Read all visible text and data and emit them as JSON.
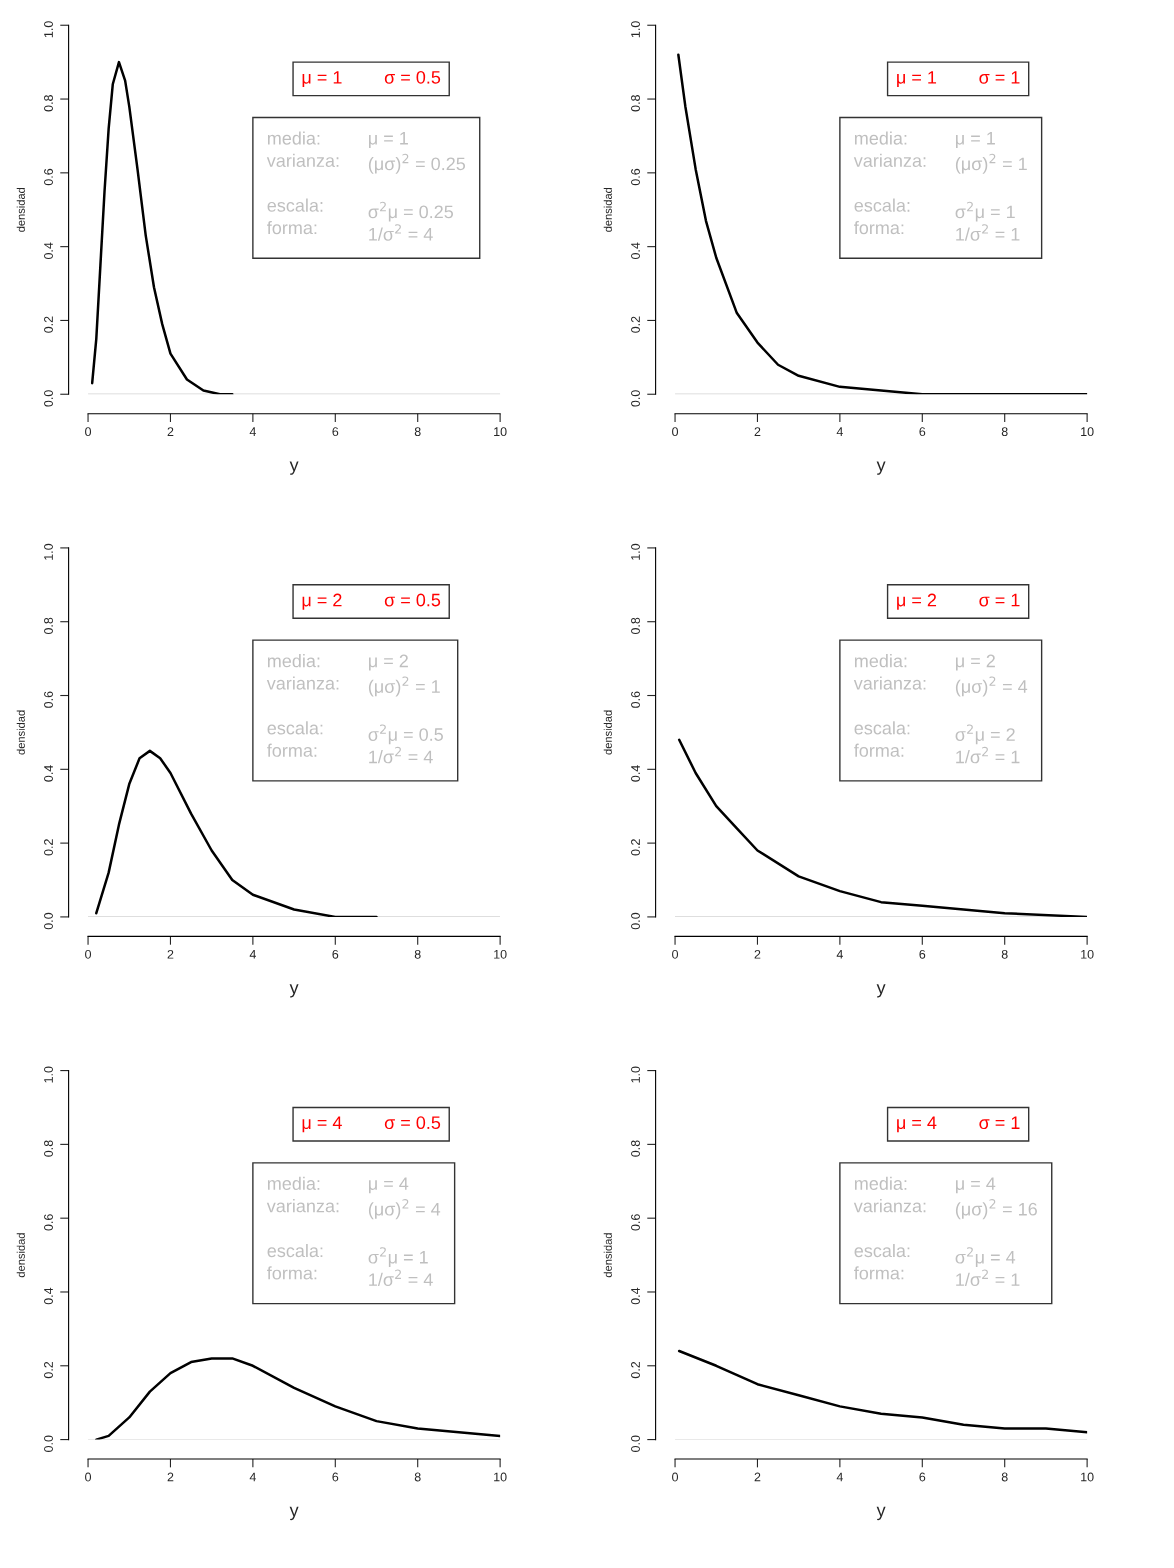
{
  "chart_data": [
    {
      "type": "line",
      "xlabel": "y",
      "ylabel": "densidad",
      "xlim": [
        0,
        10
      ],
      "ylim": [
        0,
        1
      ],
      "xticks": [
        0,
        2,
        4,
        6,
        8,
        10
      ],
      "yticks": [
        {
          "value": 0,
          "label": "0.0"
        },
        {
          "value": 0.2,
          "label": "0.2"
        },
        {
          "value": 0.4,
          "label": "0.4"
        },
        {
          "value": 0.6,
          "label": "0.6"
        },
        {
          "value": 0.8,
          "label": "0.8"
        },
        {
          "value": 1.0,
          "label": "1.0"
        }
      ],
      "ref_lines": [
        {
          "axis": "y",
          "value": 0,
          "color": "#d3d3d3"
        }
      ],
      "series": [
        {
          "color": "#000000",
          "x": [
            0.1,
            0.2,
            0.3,
            0.4,
            0.5,
            0.6,
            0.75,
            0.9,
            1.0,
            1.2,
            1.4,
            1.6,
            1.8,
            2.0,
            2.4,
            2.8,
            3.2,
            3.5
          ],
          "values": [
            0.03,
            0.15,
            0.35,
            0.55,
            0.72,
            0.84,
            0.9,
            0.85,
            0.78,
            0.61,
            0.43,
            0.29,
            0.19,
            0.11,
            0.04,
            0.01,
            0.0,
            0.0
          ]
        }
      ],
      "annotations": [
        "μ = 1",
        "σ = 0.5",
        "media:",
        "μ = 1",
        "varianza:",
        "(μσ)$^{2}$ = 0.25",
        "escala:",
        "σ$^{2}$μ = 0.25",
        "forma:",
        "1/σ$^{2}$ = 4"
      ]
    },
    {
      "type": "line",
      "xlabel": "y",
      "ylabel": "densidad",
      "xlim": [
        0,
        10
      ],
      "ylim": [
        0,
        1
      ],
      "xticks": [
        0,
        2,
        4,
        6,
        8,
        10
      ],
      "yticks": [
        {
          "value": 0,
          "label": "0.0"
        },
        {
          "value": 0.2,
          "label": "0.2"
        },
        {
          "value": 0.4,
          "label": "0.4"
        },
        {
          "value": 0.6,
          "label": "0.6"
        },
        {
          "value": 0.8,
          "label": "0.8"
        },
        {
          "value": 1.0,
          "label": "1.0"
        }
      ],
      "ref_lines": [
        {
          "axis": "y",
          "value": 0,
          "color": "#d3d3d3"
        }
      ],
      "series": [
        {
          "color": "#000000",
          "x": [
            0.08,
            0.25,
            0.5,
            0.75,
            1,
            1.5,
            2,
            2.5,
            3,
            4,
            5,
            6,
            8,
            10
          ],
          "values": [
            0.92,
            0.78,
            0.61,
            0.47,
            0.37,
            0.22,
            0.14,
            0.08,
            0.05,
            0.02,
            0.01,
            0.0,
            0.0,
            0.0
          ]
        }
      ],
      "annotations": [
        "μ = 1",
        "σ = 1",
        "media:",
        "μ = 1",
        "varianza:",
        "(μσ)$^{2}$ = 1",
        "escala:",
        "σ$^{2}$μ = 1",
        "forma:",
        "1/σ$^{2}$ = 1"
      ]
    },
    {
      "type": "line",
      "xlabel": "y",
      "ylabel": "densidad",
      "xlim": [
        0,
        10
      ],
      "ylim": [
        0,
        1
      ],
      "xticks": [
        0,
        2,
        4,
        6,
        8,
        10
      ],
      "yticks": [
        {
          "value": 0,
          "label": "0.0"
        },
        {
          "value": 0.2,
          "label": "0.2"
        },
        {
          "value": 0.4,
          "label": "0.4"
        },
        {
          "value": 0.6,
          "label": "0.6"
        },
        {
          "value": 0.8,
          "label": "0.8"
        },
        {
          "value": 1.0,
          "label": "1.0"
        }
      ],
      "ref_lines": [
        {
          "axis": "y",
          "value": 0,
          "color": "#d3d3d3"
        }
      ],
      "series": [
        {
          "color": "#000000",
          "x": [
            0.2,
            0.5,
            0.75,
            1,
            1.25,
            1.5,
            1.75,
            2,
            2.5,
            3,
            3.5,
            4,
            5,
            6,
            7
          ],
          "values": [
            0.01,
            0.12,
            0.25,
            0.36,
            0.43,
            0.45,
            0.43,
            0.39,
            0.28,
            0.18,
            0.1,
            0.06,
            0.02,
            0.0,
            0.0
          ]
        }
      ],
      "annotations": [
        "μ = 2",
        "σ = 0.5",
        "media:",
        "μ = 2",
        "varianza:",
        "(μσ)$^{2}$ = 1",
        "escala:",
        "σ$^{2}$μ = 0.5",
        "forma:",
        "1/σ$^{2}$ = 4"
      ]
    },
    {
      "type": "line",
      "xlabel": "y",
      "ylabel": "densidad",
      "xlim": [
        0,
        10
      ],
      "ylim": [
        0,
        1
      ],
      "xticks": [
        0,
        2,
        4,
        6,
        8,
        10
      ],
      "yticks": [
        {
          "value": 0,
          "label": "0.0"
        },
        {
          "value": 0.2,
          "label": "0.2"
        },
        {
          "value": 0.4,
          "label": "0.4"
        },
        {
          "value": 0.6,
          "label": "0.6"
        },
        {
          "value": 0.8,
          "label": "0.8"
        },
        {
          "value": 1.0,
          "label": "1.0"
        }
      ],
      "ref_lines": [
        {
          "axis": "y",
          "value": 0,
          "color": "#d3d3d3"
        }
      ],
      "series": [
        {
          "color": "#000000",
          "x": [
            0.1,
            0.5,
            1,
            1.5,
            2,
            3,
            4,
            5,
            6,
            7,
            8,
            10
          ],
          "values": [
            0.48,
            0.39,
            0.3,
            0.24,
            0.18,
            0.11,
            0.07,
            0.04,
            0.03,
            0.02,
            0.01,
            0.0
          ]
        }
      ],
      "annotations": [
        "μ = 2",
        "σ = 1",
        "media:",
        "μ = 2",
        "varianza:",
        "(μσ)$^{2}$ = 4",
        "escala:",
        "σ$^{2}$μ = 2",
        "forma:",
        "1/σ$^{2}$ = 1"
      ]
    },
    {
      "type": "line",
      "xlabel": "y",
      "ylabel": "densidad",
      "xlim": [
        0,
        10
      ],
      "ylim": [
        0,
        1
      ],
      "xticks": [
        0,
        2,
        4,
        6,
        8,
        10
      ],
      "yticks": [
        {
          "value": 0,
          "label": "0.0"
        },
        {
          "value": 0.2,
          "label": "0.2"
        },
        {
          "value": 0.4,
          "label": "0.4"
        },
        {
          "value": 0.6,
          "label": "0.6"
        },
        {
          "value": 0.8,
          "label": "0.8"
        },
        {
          "value": 1.0,
          "label": "1.0"
        }
      ],
      "ref_lines": [
        {
          "axis": "y",
          "value": 0,
          "color": "#d3d3d3"
        }
      ],
      "series": [
        {
          "color": "#000000",
          "x": [
            0.2,
            0.5,
            1,
            1.5,
            2,
            2.5,
            3,
            3.5,
            4,
            5,
            6,
            7,
            8,
            9,
            10
          ],
          "values": [
            0.0,
            0.01,
            0.06,
            0.13,
            0.18,
            0.21,
            0.22,
            0.22,
            0.2,
            0.14,
            0.09,
            0.05,
            0.03,
            0.02,
            0.01
          ]
        }
      ],
      "annotations": [
        "μ = 4",
        "σ = 0.5",
        "media:",
        "μ = 4",
        "varianza:",
        "(μσ)$^{2}$ = 4",
        "escala:",
        "σ$^{2}$μ = 1",
        "forma:",
        "1/σ$^{2}$ = 4"
      ]
    },
    {
      "type": "line",
      "xlabel": "y",
      "ylabel": "densidad",
      "xlim": [
        0,
        10
      ],
      "ylim": [
        0,
        1
      ],
      "xticks": [
        0,
        2,
        4,
        6,
        8,
        10
      ],
      "yticks": [
        {
          "value": 0,
          "label": "0.0"
        },
        {
          "value": 0.2,
          "label": "0.2"
        },
        {
          "value": 0.4,
          "label": "0.4"
        },
        {
          "value": 0.6,
          "label": "0.6"
        },
        {
          "value": 0.8,
          "label": "0.8"
        },
        {
          "value": 1.0,
          "label": "1.0"
        }
      ],
      "ref_lines": [
        {
          "axis": "y",
          "value": 0,
          "color": "#d3d3d3"
        }
      ],
      "series": [
        {
          "color": "#000000",
          "x": [
            0.1,
            1,
            2,
            3,
            4,
            5,
            6,
            7,
            8,
            9,
            10
          ],
          "values": [
            0.24,
            0.2,
            0.15,
            0.12,
            0.09,
            0.07,
            0.06,
            0.04,
            0.03,
            0.03,
            0.02
          ]
        }
      ],
      "annotations": [
        "μ = 4",
        "σ = 1",
        "media:",
        "μ = 4",
        "varianza:",
        "(μσ)$^{2}$ = 16",
        "escala:",
        "σ$^{2}$μ = 4",
        "forma:",
        "1/σ$^{2}$ = 1"
      ]
    }
  ]
}
